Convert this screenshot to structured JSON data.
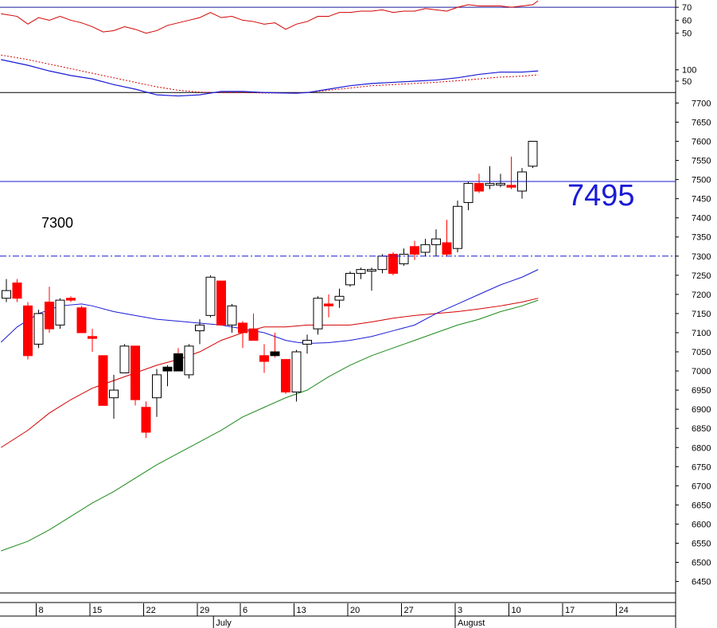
{
  "chart_data": {
    "type": "candlestick",
    "price_axis_ticks": [
      6450,
      6500,
      6550,
      6600,
      6650,
      6700,
      6750,
      6800,
      6850,
      6900,
      6950,
      7000,
      7050,
      7100,
      7150,
      7200,
      7250,
      7300,
      7350,
      7400,
      7450,
      7500,
      7550,
      7600,
      7650,
      7700
    ],
    "ylim": [
      6420,
      7730
    ],
    "annotations": {
      "resistance_label": "7495",
      "support_label": "7300"
    },
    "levels": {
      "resistance": 7495,
      "support": 7300
    },
    "date_ticks": [
      {
        "i": 3,
        "label": "8"
      },
      {
        "i": 8,
        "label": "15"
      },
      {
        "i": 13,
        "label": "22"
      },
      {
        "i": 18,
        "label": "29"
      },
      {
        "i": 22,
        "label": "6"
      },
      {
        "i": 27,
        "label": "13"
      },
      {
        "i": 32,
        "label": "20"
      },
      {
        "i": 37,
        "label": "27"
      },
      {
        "i": 42,
        "label": "3"
      },
      {
        "i": 47,
        "label": "10"
      },
      {
        "i": 52,
        "label": "17"
      },
      {
        "i": 57,
        "label": "24"
      }
    ],
    "month_labels": [
      {
        "i": 19.5,
        "label": "July"
      },
      {
        "i": 42,
        "label": "August"
      }
    ],
    "candles": [
      {
        "o": 7190,
        "h": 7240,
        "l": 7180,
        "c": 7210
      },
      {
        "o": 7230,
        "h": 7240,
        "l": 7180,
        "c": 7190
      },
      {
        "o": 7170,
        "h": 7180,
        "l": 7030,
        "c": 7040
      },
      {
        "o": 7070,
        "h": 7160,
        "l": 7060,
        "c": 7150
      },
      {
        "o": 7180,
        "h": 7220,
        "l": 7100,
        "c": 7110
      },
      {
        "o": 7120,
        "h": 7190,
        "l": 7110,
        "c": 7185
      },
      {
        "o": 7190,
        "h": 7195,
        "l": 7180,
        "c": 7185
      },
      {
        "o": 7165,
        "h": 7170,
        "l": 7100,
        "c": 7100
      },
      {
        "o": 7090,
        "h": 7110,
        "l": 7050,
        "c": 7085
      },
      {
        "o": 7040,
        "h": 7040,
        "l": 6910,
        "c": 6910
      },
      {
        "o": 6930,
        "h": 6990,
        "l": 6875,
        "c": 6950
      },
      {
        "o": 6995,
        "h": 7070,
        "l": 6995,
        "c": 7065
      },
      {
        "o": 7065,
        "h": 7065,
        "l": 6910,
        "c": 6925
      },
      {
        "o": 6905,
        "h": 6920,
        "l": 6825,
        "c": 6840
      },
      {
        "o": 6930,
        "h": 7005,
        "l": 6880,
        "c": 6990
      },
      {
        "o": 7000,
        "h": 7015,
        "l": 6960,
        "c": 7010,
        "fill": "black"
      },
      {
        "o": 7045,
        "h": 7060,
        "l": 7000,
        "c": 7000,
        "fill": "black"
      },
      {
        "o": 6990,
        "h": 7070,
        "l": 6980,
        "c": 7065
      },
      {
        "o": 7105,
        "h": 7135,
        "l": 7070,
        "c": 7120
      },
      {
        "o": 7145,
        "h": 7250,
        "l": 7140,
        "c": 7245
      },
      {
        "o": 7235,
        "h": 7235,
        "l": 7120,
        "c": 7120
      },
      {
        "o": 7120,
        "h": 7175,
        "l": 7100,
        "c": 7170
      },
      {
        "o": 7125,
        "h": 7130,
        "l": 7060,
        "c": 7100
      },
      {
        "o": 7110,
        "h": 7150,
        "l": 7080,
        "c": 7080
      },
      {
        "o": 7040,
        "h": 7070,
        "l": 6995,
        "c": 7025
      },
      {
        "o": 7050,
        "h": 7100,
        "l": 7035,
        "c": 7040,
        "fill": "black"
      },
      {
        "o": 7030,
        "h": 7030,
        "l": 6940,
        "c": 6945
      },
      {
        "o": 6945,
        "h": 7055,
        "l": 6920,
        "c": 7050
      },
      {
        "o": 7070,
        "h": 7095,
        "l": 7045,
        "c": 7080
      },
      {
        "o": 7110,
        "h": 7195,
        "l": 7095,
        "c": 7190
      },
      {
        "o": 7175,
        "h": 7200,
        "l": 7140,
        "c": 7170
      },
      {
        "o": 7185,
        "h": 7215,
        "l": 7165,
        "c": 7195
      },
      {
        "o": 7225,
        "h": 7260,
        "l": 7220,
        "c": 7255
      },
      {
        "o": 7255,
        "h": 7270,
        "l": 7240,
        "c": 7265
      },
      {
        "o": 7265,
        "h": 7270,
        "l": 7210,
        "c": 7265
      },
      {
        "o": 7265,
        "h": 7305,
        "l": 7255,
        "c": 7300
      },
      {
        "o": 7305,
        "h": 7310,
        "l": 7250,
        "c": 7255
      },
      {
        "o": 7280,
        "h": 7320,
        "l": 7275,
        "c": 7305
      },
      {
        "o": 7325,
        "h": 7340,
        "l": 7290,
        "c": 7305
      },
      {
        "o": 7310,
        "h": 7345,
        "l": 7300,
        "c": 7330
      },
      {
        "o": 7330,
        "h": 7370,
        "l": 7300,
        "c": 7345
      },
      {
        "o": 7335,
        "h": 7395,
        "l": 7300,
        "c": 7305
      },
      {
        "o": 7320,
        "h": 7445,
        "l": 7310,
        "c": 7430
      },
      {
        "o": 7440,
        "h": 7495,
        "l": 7420,
        "c": 7490
      },
      {
        "o": 7490,
        "h": 7515,
        "l": 7465,
        "c": 7470
      },
      {
        "o": 7485,
        "h": 7535,
        "l": 7475,
        "c": 7490
      },
      {
        "o": 7490,
        "h": 7515,
        "l": 7480,
        "c": 7490
      },
      {
        "o": 7485,
        "h": 7560,
        "l": 7475,
        "c": 7480
      },
      {
        "o": 7470,
        "h": 7530,
        "l": 7450,
        "c": 7520
      },
      {
        "o": 7535,
        "h": 7600,
        "l": 7530,
        "c": 7600
      }
    ],
    "ma_blue": [
      [
        -0.5,
        7075
      ],
      [
        1,
        7115
      ],
      [
        3,
        7150
      ],
      [
        5,
        7170
      ],
      [
        7,
        7175
      ],
      [
        8,
        7170
      ],
      [
        10,
        7155
      ],
      [
        12,
        7145
      ],
      [
        14,
        7135
      ],
      [
        16,
        7130
      ],
      [
        18,
        7125
      ],
      [
        20,
        7120
      ],
      [
        22,
        7110
      ],
      [
        24,
        7100
      ],
      [
        26,
        7080
      ],
      [
        27,
        7075
      ],
      [
        28,
        7072
      ],
      [
        30,
        7074
      ],
      [
        32,
        7080
      ],
      [
        34,
        7090
      ],
      [
        36,
        7105
      ],
      [
        38,
        7120
      ],
      [
        40,
        7150
      ],
      [
        42,
        7175
      ],
      [
        44,
        7200
      ],
      [
        46,
        7225
      ],
      [
        48,
        7245
      ],
      [
        49.5,
        7265
      ]
    ],
    "ma_red": [
      [
        -0.5,
        6800
      ],
      [
        2,
        6845
      ],
      [
        4,
        6890
      ],
      [
        6,
        6925
      ],
      [
        8,
        6955
      ],
      [
        10,
        6975
      ],
      [
        12,
        6995
      ],
      [
        14,
        7015
      ],
      [
        16,
        7030
      ],
      [
        18,
        7050
      ],
      [
        20,
        7080
      ],
      [
        22,
        7100
      ],
      [
        24,
        7115
      ],
      [
        26,
        7115
      ],
      [
        28,
        7120
      ],
      [
        30,
        7120
      ],
      [
        32,
        7120
      ],
      [
        34,
        7128
      ],
      [
        36,
        7138
      ],
      [
        38,
        7145
      ],
      [
        40,
        7150
      ],
      [
        42,
        7155
      ],
      [
        44,
        7162
      ],
      [
        46,
        7170
      ],
      [
        48,
        7180
      ],
      [
        49.5,
        7190
      ]
    ],
    "ma_green": [
      [
        -0.5,
        6530
      ],
      [
        2,
        6555
      ],
      [
        4,
        6585
      ],
      [
        6,
        6620
      ],
      [
        8,
        6655
      ],
      [
        10,
        6685
      ],
      [
        12,
        6720
      ],
      [
        14,
        6755
      ],
      [
        16,
        6785
      ],
      [
        18,
        6815
      ],
      [
        20,
        6845
      ],
      [
        22,
        6880
      ],
      [
        24,
        6905
      ],
      [
        26,
        6930
      ],
      [
        28,
        6950
      ],
      [
        30,
        6985
      ],
      [
        32,
        7015
      ],
      [
        34,
        7040
      ],
      [
        36,
        7060
      ],
      [
        38,
        7080
      ],
      [
        40,
        7100
      ],
      [
        42,
        7120
      ],
      [
        44,
        7135
      ],
      [
        46,
        7155
      ],
      [
        48,
        7170
      ],
      [
        49.5,
        7185
      ]
    ],
    "rsi": {
      "ticks": [
        50,
        60,
        70
      ],
      "ylim": [
        40,
        75
      ],
      "level_line": 70,
      "values": [
        [
          -0.5,
          65
        ],
        [
          1,
          63
        ],
        [
          2,
          57
        ],
        [
          3,
          62
        ],
        [
          4,
          60
        ],
        [
          5,
          63
        ],
        [
          6,
          60
        ],
        [
          7,
          58
        ],
        [
          8,
          55
        ],
        [
          9,
          51
        ],
        [
          10,
          52
        ],
        [
          11,
          55
        ],
        [
          12,
          53
        ],
        [
          13,
          50
        ],
        [
          14,
          52
        ],
        [
          15,
          56
        ],
        [
          16,
          58
        ],
        [
          17,
          60
        ],
        [
          18,
          62
        ],
        [
          19,
          66
        ],
        [
          20,
          62
        ],
        [
          21,
          63
        ],
        [
          22,
          60
        ],
        [
          23,
          59
        ],
        [
          24,
          57
        ],
        [
          25,
          58
        ],
        [
          26,
          53
        ],
        [
          27,
          57
        ],
        [
          28,
          59
        ],
        [
          29,
          63
        ],
        [
          30,
          63
        ],
        [
          31,
          66
        ],
        [
          32,
          66
        ],
        [
          33,
          67
        ],
        [
          34,
          67
        ],
        [
          35,
          68
        ],
        [
          36,
          66
        ],
        [
          37,
          67
        ],
        [
          38,
          67
        ],
        [
          39,
          69
        ],
        [
          40,
          68
        ],
        [
          41,
          67
        ],
        [
          42,
          70
        ],
        [
          43,
          72
        ],
        [
          44,
          71
        ],
        [
          45,
          71
        ],
        [
          46,
          71
        ],
        [
          47,
          70
        ],
        [
          48,
          71
        ],
        [
          49,
          72
        ],
        [
          49.5,
          75
        ]
      ]
    },
    "macd": {
      "ticks": [
        50,
        100
      ],
      "ylim": [
        -20,
        190
      ],
      "level_line": 0,
      "macd_line": [
        [
          -0.5,
          145
        ],
        [
          2,
          120
        ],
        [
          4,
          95
        ],
        [
          6,
          75
        ],
        [
          8,
          60
        ],
        [
          10,
          35
        ],
        [
          12,
          15
        ],
        [
          14,
          -10
        ],
        [
          16,
          -15
        ],
        [
          18,
          -10
        ],
        [
          20,
          5
        ],
        [
          22,
          5
        ],
        [
          24,
          0
        ],
        [
          26,
          -2
        ],
        [
          27,
          -3
        ],
        [
          28,
          0
        ],
        [
          30,
          15
        ],
        [
          32,
          30
        ],
        [
          34,
          40
        ],
        [
          36,
          45
        ],
        [
          38,
          50
        ],
        [
          40,
          55
        ],
        [
          42,
          65
        ],
        [
          44,
          80
        ],
        [
          46,
          90
        ],
        [
          48,
          90
        ],
        [
          49.5,
          95
        ]
      ],
      "signal_line": [
        [
          -0.5,
          165
        ],
        [
          2,
          145
        ],
        [
          4,
          125
        ],
        [
          6,
          105
        ],
        [
          8,
          85
        ],
        [
          10,
          65
        ],
        [
          12,
          45
        ],
        [
          14,
          25
        ],
        [
          16,
          10
        ],
        [
          18,
          2
        ],
        [
          20,
          0
        ],
        [
          22,
          0
        ],
        [
          24,
          -2
        ],
        [
          26,
          -2
        ],
        [
          28,
          0
        ],
        [
          30,
          10
        ],
        [
          32,
          20
        ],
        [
          34,
          30
        ],
        [
          36,
          35
        ],
        [
          38,
          40
        ],
        [
          40,
          45
        ],
        [
          42,
          52
        ],
        [
          44,
          60
        ],
        [
          46,
          68
        ],
        [
          48,
          72
        ],
        [
          49.5,
          78
        ]
      ]
    }
  }
}
